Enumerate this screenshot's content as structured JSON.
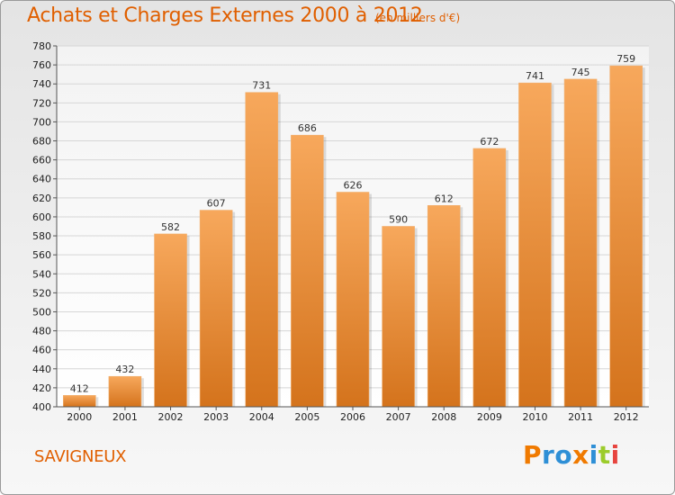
{
  "header": {
    "title": "Achats et Charges Externes 2000 à 2012",
    "subtitle": "(en milliers d'€)"
  },
  "footer": {
    "commune": "SAVIGNEUX",
    "logo_text": "Proxiti",
    "logo_colors": [
      "#f07a00",
      "#2e8fd6",
      "#2e8fd6",
      "#f07a00",
      "#2e8fd6",
      "#9ccc2b",
      "#e7443f"
    ]
  },
  "colors": {
    "bar_top": "#f7a85c",
    "bar_bottom": "#d4731c",
    "accent": "#e05f00"
  },
  "chart_data": {
    "type": "bar",
    "categories": [
      "2000",
      "2001",
      "2002",
      "2003",
      "2004",
      "2005",
      "2006",
      "2007",
      "2008",
      "2009",
      "2010",
      "2011",
      "2012"
    ],
    "values": [
      412,
      432,
      582,
      607,
      731,
      686,
      626,
      590,
      612,
      672,
      741,
      745,
      759
    ],
    "data_labels": [
      "412",
      "432",
      "582",
      "607",
      "731",
      "686",
      "626",
      "590",
      "612",
      "672",
      "741",
      "745",
      "759"
    ],
    "ylim": [
      400,
      780
    ],
    "yticks": [
      "400",
      "420",
      "440",
      "460",
      "480",
      "500",
      "520",
      "540",
      "560",
      "580",
      "600",
      "620",
      "640",
      "660",
      "680",
      "700",
      "720",
      "740",
      "760",
      "780"
    ],
    "grid": true,
    "legend": "none"
  }
}
